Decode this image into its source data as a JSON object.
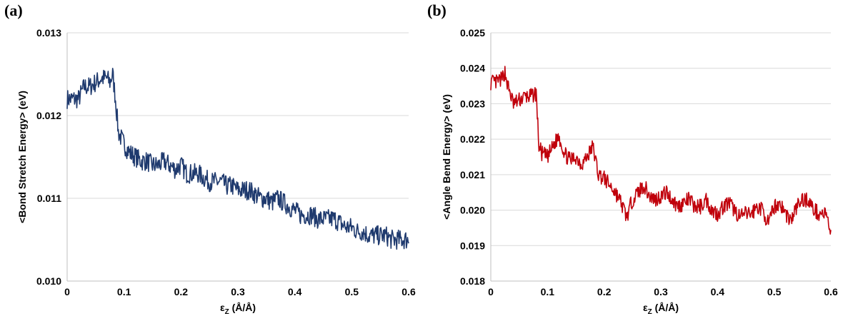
{
  "chart_data": [
    {
      "type": "line",
      "panel_label": "(a)",
      "ylabel": "<Bond Stretch Energy> (eV)",
      "xlabel_main": "ε",
      "xlabel_sub": "Z",
      "xlabel_tail": " (Å/Å)",
      "xlim": [
        0,
        0.6
      ],
      "ylim": [
        0.01,
        0.013
      ],
      "xticks": [
        "0",
        "0.1",
        "0.2",
        "0.3",
        "0.4",
        "0.5",
        "0.6"
      ],
      "yticks": [
        "0.010",
        "0.011",
        "0.012",
        "0.013"
      ],
      "grid": true,
      "color": "#1f3a6e",
      "series": [
        {
          "x": [
            0.0,
            0.01,
            0.02,
            0.03,
            0.04,
            0.05,
            0.06,
            0.07,
            0.075,
            0.08,
            0.085,
            0.09,
            0.1,
            0.11,
            0.12,
            0.13,
            0.14,
            0.15,
            0.16,
            0.17,
            0.18,
            0.19,
            0.2,
            0.21,
            0.22,
            0.23,
            0.24,
            0.25,
            0.26,
            0.27,
            0.28,
            0.29,
            0.3,
            0.31,
            0.32,
            0.33,
            0.34,
            0.35,
            0.36,
            0.37,
            0.38,
            0.39,
            0.4,
            0.41,
            0.42,
            0.43,
            0.44,
            0.45,
            0.46,
            0.47,
            0.48,
            0.49,
            0.5,
            0.51,
            0.52,
            0.53,
            0.54,
            0.55,
            0.56,
            0.57,
            0.58,
            0.59,
            0.6
          ],
          "y": [
            0.0122,
            0.0122,
            0.0122,
            0.01235,
            0.01235,
            0.0124,
            0.01245,
            0.01245,
            0.0124,
            0.0125,
            0.0122,
            0.0118,
            0.01165,
            0.01155,
            0.0115,
            0.01145,
            0.01145,
            0.0114,
            0.0114,
            0.01145,
            0.0114,
            0.01135,
            0.0114,
            0.0113,
            0.0113,
            0.0113,
            0.01125,
            0.0112,
            0.0112,
            0.0112,
            0.01115,
            0.01115,
            0.0111,
            0.0111,
            0.0111,
            0.01105,
            0.011,
            0.011,
            0.01095,
            0.011,
            0.01095,
            0.0109,
            0.01085,
            0.0108,
            0.0108,
            0.0108,
            0.01075,
            0.01075,
            0.01075,
            0.01075,
            0.0107,
            0.01065,
            0.01065,
            0.0106,
            0.0106,
            0.01055,
            0.01055,
            0.01055,
            0.01055,
            0.0105,
            0.0105,
            0.0105,
            0.0105
          ]
        }
      ]
    },
    {
      "type": "line",
      "panel_label": "(b)",
      "ylabel": "<Angle Bend Energy> (eV)",
      "xlabel_main": "ε",
      "xlabel_sub": "Z",
      "xlabel_tail": " (Å/Å)",
      "xlim": [
        0,
        0.6
      ],
      "ylim": [
        0.018,
        0.025
      ],
      "xticks": [
        "0",
        "0.1",
        "0.2",
        "0.3",
        "0.4",
        "0.5",
        "0.6"
      ],
      "yticks": [
        "0.018",
        "0.019",
        "0.020",
        "0.021",
        "0.022",
        "0.023",
        "0.024",
        "0.025"
      ],
      "grid": true,
      "color": "#c0000b",
      "series": [
        {
          "x": [
            0.0,
            0.01,
            0.02,
            0.025,
            0.03,
            0.04,
            0.05,
            0.06,
            0.07,
            0.08,
            0.085,
            0.09,
            0.1,
            0.11,
            0.12,
            0.13,
            0.14,
            0.15,
            0.16,
            0.17,
            0.18,
            0.19,
            0.2,
            0.21,
            0.22,
            0.23,
            0.24,
            0.25,
            0.26,
            0.27,
            0.28,
            0.29,
            0.3,
            0.31,
            0.32,
            0.33,
            0.34,
            0.35,
            0.36,
            0.37,
            0.38,
            0.39,
            0.4,
            0.41,
            0.42,
            0.43,
            0.44,
            0.45,
            0.46,
            0.47,
            0.48,
            0.49,
            0.5,
            0.51,
            0.52,
            0.53,
            0.54,
            0.55,
            0.56,
            0.57,
            0.58,
            0.59,
            0.6
          ],
          "y": [
            0.0236,
            0.0236,
            0.0237,
            0.0239,
            0.0235,
            0.023,
            0.0231,
            0.0232,
            0.0232,
            0.0233,
            0.0218,
            0.0216,
            0.0215,
            0.0218,
            0.0221,
            0.0216,
            0.0214,
            0.0215,
            0.0213,
            0.0215,
            0.0218,
            0.021,
            0.0209,
            0.0207,
            0.0205,
            0.0202,
            0.0198,
            0.0203,
            0.0205,
            0.0207,
            0.0204,
            0.0203,
            0.0204,
            0.0205,
            0.0203,
            0.0201,
            0.0202,
            0.0203,
            0.0201,
            0.0201,
            0.0203,
            0.02,
            0.0199,
            0.0201,
            0.0202,
            0.02,
            0.0198,
            0.0199,
            0.0199,
            0.0201,
            0.02,
            0.0196,
            0.0201,
            0.0202,
            0.0199,
            0.0197,
            0.0201,
            0.0203,
            0.0203,
            0.02,
            0.0199,
            0.0199,
            0.0194
          ]
        }
      ]
    }
  ]
}
